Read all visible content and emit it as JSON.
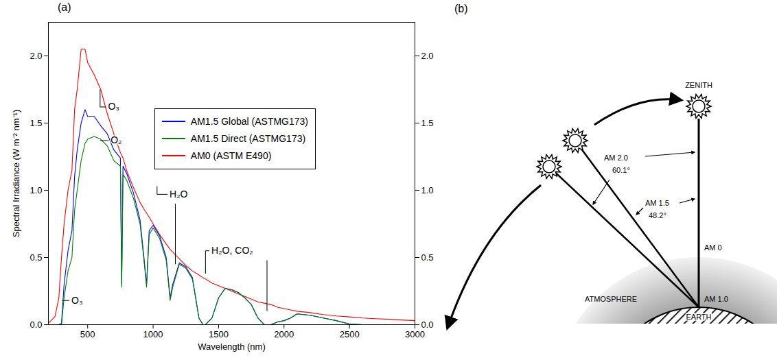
{
  "chart_data": {
    "type": "line",
    "panel_label": "(a)",
    "x_label": "Wavelength (nm)",
    "y_label": "Spectral Irradiance (W m⁻² nm⁻¹)",
    "x": [
      200,
      250,
      280,
      300,
      320,
      350,
      380,
      400,
      420,
      450,
      480,
      500,
      550,
      600,
      650,
      700,
      750,
      760,
      770,
      800,
      850,
      900,
      930,
      950,
      970,
      1000,
      1050,
      1100,
      1130,
      1150,
      1200,
      1250,
      1300,
      1350,
      1380,
      1400,
      1450,
      1500,
      1550,
      1600,
      1650,
      1700,
      1750,
      1800,
      1850,
      1870,
      1900,
      1950,
      2000,
      2050,
      2100,
      2200,
      2300,
      2400,
      2500,
      2600,
      2700,
      2800,
      2900,
      3000
    ],
    "series": [
      {
        "name": "AM0 (ASTM E490)",
        "color": "#ff0000",
        "values": [
          0.01,
          0.06,
          0.2,
          0.5,
          0.75,
          1.0,
          1.15,
          1.6,
          1.75,
          2.05,
          2.05,
          1.95,
          1.86,
          1.75,
          1.57,
          1.42,
          1.28,
          1.26,
          1.24,
          1.14,
          1.02,
          0.91,
          0.86,
          0.83,
          0.8,
          0.75,
          0.67,
          0.6,
          0.56,
          0.54,
          0.49,
          0.44,
          0.4,
          0.37,
          0.35,
          0.34,
          0.31,
          0.29,
          0.27,
          0.25,
          0.23,
          0.21,
          0.19,
          0.17,
          0.16,
          0.155,
          0.15,
          0.13,
          0.12,
          0.11,
          0.1,
          0.09,
          0.075,
          0.065,
          0.058,
          0.05,
          0.045,
          0.04,
          0.035,
          0.03
        ]
      },
      {
        "name": "AM1.5 Global (ASTMG173)",
        "color": "#0000ff",
        "values": [
          0,
          0,
          0,
          0.01,
          0.3,
          0.55,
          0.7,
          1.1,
          1.3,
          1.5,
          1.6,
          1.55,
          1.55,
          1.48,
          1.42,
          1.3,
          1.24,
          0.3,
          1.18,
          1.12,
          0.98,
          0.78,
          0.5,
          0.3,
          0.7,
          0.74,
          0.66,
          0.5,
          0.2,
          0.3,
          0.46,
          0.43,
          0.35,
          0.05,
          0,
          0,
          0.05,
          0.2,
          0.27,
          0.26,
          0.24,
          0.2,
          0.15,
          0.05,
          0,
          0,
          0,
          0.02,
          0.03,
          0.05,
          0.08,
          0.07,
          0.05,
          0.03,
          0.005,
          0,
          0,
          0,
          0,
          0
        ]
      },
      {
        "name": "AM1.5 Direct (ASTMG173)",
        "color": "#008000",
        "values": [
          0,
          0,
          0,
          0,
          0.2,
          0.4,
          0.5,
          0.85,
          1.0,
          1.22,
          1.35,
          1.38,
          1.4,
          1.38,
          1.33,
          1.22,
          1.18,
          0.28,
          1.12,
          1.07,
          0.94,
          0.75,
          0.48,
          0.28,
          0.67,
          0.72,
          0.64,
          0.48,
          0.18,
          0.28,
          0.45,
          0.42,
          0.34,
          0.05,
          0,
          0,
          0.05,
          0.2,
          0.27,
          0.26,
          0.24,
          0.2,
          0.15,
          0.05,
          0,
          0,
          0,
          0.02,
          0.03,
          0.05,
          0.08,
          0.07,
          0.05,
          0.03,
          0.005,
          0,
          0,
          0,
          0,
          0
        ]
      }
    ],
    "legend_order": [
      "AM1.5 Global (ASTMG173)",
      "AM1.5 Direct (ASTMG173)",
      "AM0 (ASTM E490)"
    ],
    "xlim": [
      200,
      3000
    ],
    "xticks": [
      500,
      1000,
      1500,
      2000,
      2500,
      3000
    ],
    "ylim": [
      0,
      2.25
    ],
    "yticks": [
      {
        "value": 0,
        "label": "0.0"
      },
      {
        "value": 0.5,
        "label": "0.5"
      },
      {
        "value": 1,
        "label": "1.0"
      },
      {
        "value": 1.5,
        "label": "1.5"
      },
      {
        "value": 2,
        "label": "2.0"
      }
    ],
    "grid": false,
    "legend": "right",
    "annotations": [
      {
        "text": "O₃",
        "x": 640,
        "y": 1.62,
        "targets": [
          [
            595,
            1.75
          ]
        ]
      },
      {
        "text": "O₂",
        "x": 660,
        "y": 1.37,
        "targets": [
          [
            595,
            1.37
          ]
        ]
      },
      {
        "text": "H₂O",
        "x": 1110,
        "y": 0.97,
        "targets": [
          [
            1030,
            1.03
          ],
          [
            1170,
            0.45
          ]
        ]
      },
      {
        "text": "H₂O, CO₂",
        "x": 1430,
        "y": 0.55,
        "targets": [
          [
            1400,
            0.38
          ],
          [
            1870,
            0.1
          ]
        ]
      },
      {
        "text": "O₃",
        "x": 360,
        "y": 0.18,
        "targets": [
          [
            305,
            0.18
          ]
        ]
      }
    ]
  },
  "diagram": {
    "panel_label": "(b)",
    "zenith": "ZENITH",
    "am2": "AM 2.0",
    "am2_angle": "60.1°",
    "am15": "AM 1.5",
    "am15_angle": "48.2°",
    "am0": "AM 0",
    "am1": "AM 1.0",
    "atmosphere": "ATMOSPHERE",
    "earth": "EARTH"
  }
}
